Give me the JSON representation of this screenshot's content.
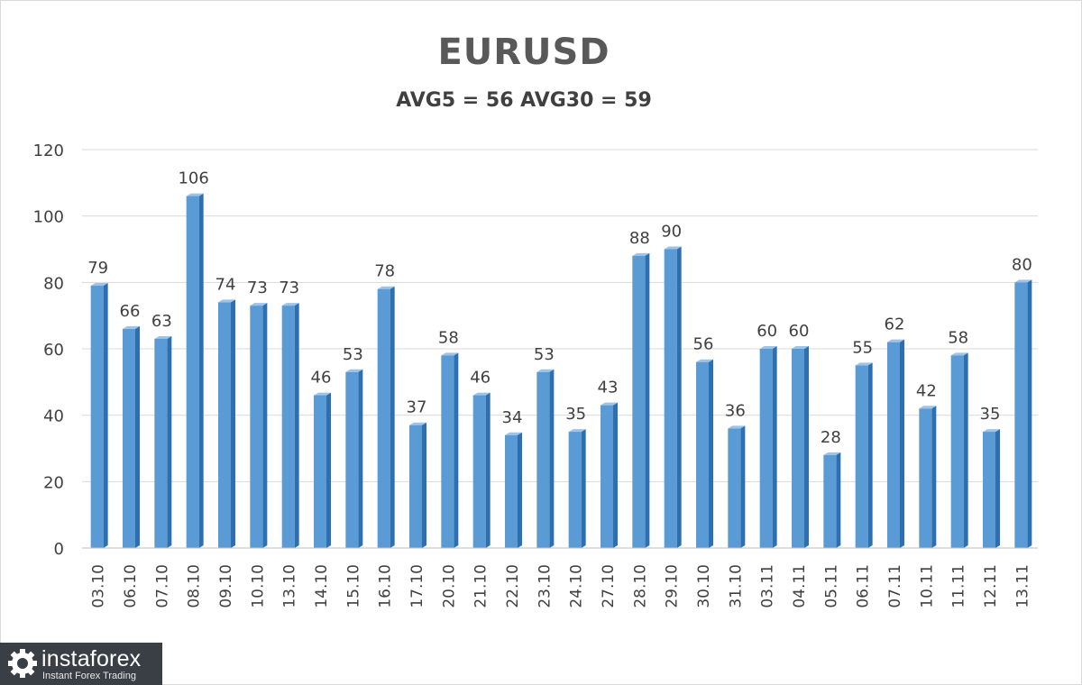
{
  "brand": {
    "name": "instaforex",
    "tagline": "Instant Forex Trading"
  },
  "colors": {
    "bar_front": "#5b9bd5",
    "bar_side": "#2e6fb0",
    "bar_top": "#9cc3e8",
    "grid": "#d9d9d9",
    "text": "#404040"
  },
  "chart_data": {
    "type": "bar",
    "title": "EURUSD",
    "subtitle": "AVG5 = 56 AVG30 = 59",
    "xlabel": "",
    "ylabel": "",
    "ylim": [
      0,
      120
    ],
    "yticks": [
      0,
      20,
      40,
      60,
      80,
      100,
      120
    ],
    "grid": true,
    "legend": "none",
    "data_labels": true,
    "categories": [
      "03.10",
      "06.10",
      "07.10",
      "08.10",
      "09.10",
      "10.10",
      "13.10",
      "14.10",
      "15.10",
      "16.10",
      "17.10",
      "20.10",
      "21.10",
      "22.10",
      "23.10",
      "24.10",
      "27.10",
      "28.10",
      "29.10",
      "30.10",
      "31.10",
      "03.11",
      "04.11",
      "05.11",
      "06.11",
      "07.11",
      "10.11",
      "11.11",
      "12.11",
      "13.11"
    ],
    "values": [
      79,
      66,
      63,
      106,
      74,
      73,
      73,
      46,
      53,
      78,
      37,
      58,
      46,
      34,
      53,
      35,
      43,
      88,
      90,
      56,
      36,
      60,
      60,
      28,
      55,
      62,
      42,
      58,
      35,
      80
    ]
  }
}
